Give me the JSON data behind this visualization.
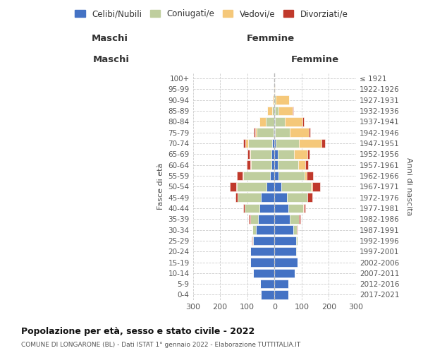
{
  "age_groups": [
    "100+",
    "95-99",
    "90-94",
    "85-89",
    "80-84",
    "75-79",
    "70-74",
    "65-69",
    "60-64",
    "55-59",
    "50-54",
    "45-49",
    "40-44",
    "35-39",
    "30-34",
    "25-29",
    "20-24",
    "15-19",
    "10-14",
    "5-9",
    "0-4"
  ],
  "birth_years": [
    "≤ 1921",
    "1922-1926",
    "1927-1931",
    "1932-1936",
    "1937-1941",
    "1942-1946",
    "1947-1951",
    "1952-1956",
    "1957-1961",
    "1962-1966",
    "1967-1971",
    "1972-1976",
    "1977-1981",
    "1982-1986",
    "1987-1991",
    "1992-1996",
    "1997-2001",
    "2002-2006",
    "2007-2011",
    "2012-2016",
    "2017-2021"
  ],
  "male_celibi": [
    1,
    0,
    0,
    1,
    2,
    3,
    8,
    10,
    12,
    15,
    28,
    50,
    55,
    60,
    68,
    78,
    88,
    90,
    78,
    52,
    50
  ],
  "male_coniugati": [
    0,
    0,
    2,
    8,
    30,
    62,
    88,
    80,
    75,
    100,
    110,
    85,
    55,
    30,
    12,
    4,
    2,
    0,
    0,
    0,
    0
  ],
  "male_vedovi": [
    0,
    1,
    4,
    18,
    22,
    5,
    12,
    2,
    2,
    2,
    2,
    0,
    0,
    0,
    0,
    0,
    0,
    0,
    0,
    0,
    0
  ],
  "male_divorziati": [
    0,
    0,
    0,
    0,
    0,
    5,
    8,
    8,
    12,
    20,
    25,
    8,
    5,
    5,
    2,
    2,
    0,
    0,
    0,
    0,
    0
  ],
  "female_nubili": [
    0,
    0,
    0,
    2,
    2,
    2,
    4,
    12,
    12,
    16,
    25,
    45,
    50,
    55,
    70,
    80,
    80,
    85,
    75,
    50,
    50
  ],
  "female_coniugate": [
    0,
    0,
    4,
    12,
    35,
    55,
    85,
    60,
    75,
    95,
    110,
    75,
    55,
    35,
    12,
    4,
    2,
    0,
    0,
    0,
    0
  ],
  "female_vedove": [
    0,
    3,
    50,
    52,
    65,
    70,
    85,
    50,
    25,
    8,
    4,
    2,
    2,
    0,
    0,
    0,
    0,
    0,
    0,
    0,
    0
  ],
  "female_divorziate": [
    0,
    0,
    0,
    4,
    5,
    4,
    12,
    8,
    12,
    22,
    28,
    18,
    5,
    5,
    2,
    2,
    0,
    0,
    0,
    0,
    0
  ],
  "colors": {
    "celibi": "#4472C4",
    "coniugati": "#BFCE9E",
    "vedovi": "#F5C87A",
    "divorziati": "#C0392B"
  },
  "xlim": 300,
  "title": "Popolazione per età, sesso e stato civile - 2022",
  "subtitle": "COMUNE DI LONGARONE (BL) - Dati ISTAT 1° gennaio 2022 - Elaborazione TUTTITALIA.IT",
  "ylabel_left": "Fasce di età",
  "ylabel_right": "Anni di nascita",
  "xlabel_left": "Maschi",
  "xlabel_right": "Femmine",
  "legend_labels": [
    "Celibi/Nubili",
    "Coniugati/e",
    "Vedovi/e",
    "Divorziati/e"
  ],
  "background_color": "#FFFFFF"
}
